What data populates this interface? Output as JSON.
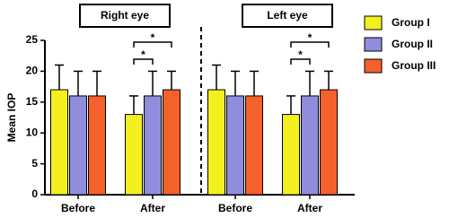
{
  "chart_data": [
    {
      "type": "bar",
      "title": "Right eye",
      "ylabel": "Mean IOP",
      "categories": [
        "Before",
        "After"
      ],
      "series": [
        {
          "name": "Group I",
          "color": "#f4ef1f",
          "values": [
            17,
            13
          ],
          "errors": [
            4,
            3
          ]
        },
        {
          "name": "Group II",
          "color": "#8f8ddc",
          "values": [
            16,
            16
          ],
          "errors": [
            4,
            4
          ]
        },
        {
          "name": "Group III",
          "color": "#f4612b",
          "values": [
            16,
            17
          ],
          "errors": [
            4,
            3
          ]
        }
      ],
      "annotations": [
        "*",
        "*"
      ],
      "ylim": [
        0,
        25
      ],
      "yticks": [
        0,
        5,
        10,
        15,
        20,
        25
      ]
    },
    {
      "type": "bar",
      "title": "Left eye",
      "categories": [
        "Before",
        "After"
      ],
      "series": [
        {
          "color": "#f4ef1f",
          "values": [
            17,
            13
          ],
          "errors": [
            4,
            3
          ]
        },
        {
          "color": "#8f8ddc",
          "values": [
            16,
            16
          ],
          "errors": [
            4,
            4
          ]
        },
        {
          "color": "#f4612b",
          "values": [
            16,
            17
          ],
          "errors": [
            4,
            3
          ]
        }
      ],
      "annotations": [
        "*",
        "*"
      ],
      "ylim": [
        0,
        25
      ]
    }
  ]
}
